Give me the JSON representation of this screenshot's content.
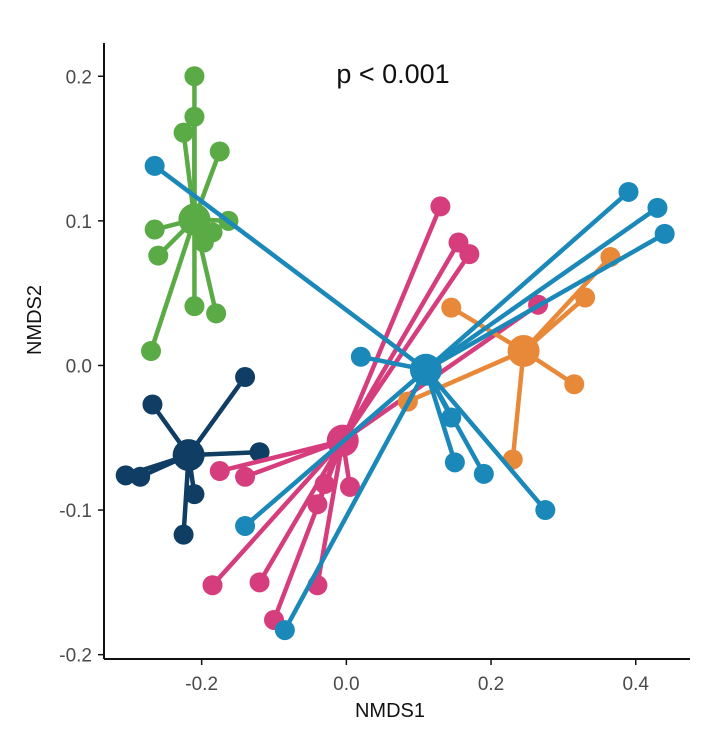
{
  "chart_data": {
    "type": "scatter",
    "xlabel": "NMDS1",
    "ylabel": "NMDS2",
    "annotation": "p < 0.001",
    "xlim": [
      -0.335,
      0.475
    ],
    "ylim": [
      -0.203,
      0.223
    ],
    "xticks": [
      -0.2,
      0.0,
      0.2,
      0.4
    ],
    "xtick_labels": [
      "-0.2",
      "0.0",
      "0.2",
      "0.4"
    ],
    "yticks": [
      -0.2,
      -0.1,
      0.0,
      0.1,
      0.2
    ],
    "ytick_labels": [
      "-0.2",
      "-0.1",
      "0.0",
      "0.1",
      "0.2"
    ],
    "grid": false,
    "legend": "none",
    "series": [
      {
        "color": "#5aaa46",
        "centroid": [
          -0.21,
          0.101
        ],
        "points": [
          [
            -0.21,
            0.2
          ],
          [
            -0.21,
            0.172
          ],
          [
            -0.225,
            0.161
          ],
          [
            -0.175,
            0.148
          ],
          [
            -0.265,
            0.094
          ],
          [
            -0.26,
            0.076
          ],
          [
            -0.185,
            0.092
          ],
          [
            -0.197,
            0.085
          ],
          [
            -0.163,
            0.1
          ],
          [
            -0.21,
            0.041
          ],
          [
            -0.18,
            0.036
          ],
          [
            -0.27,
            0.01
          ]
        ]
      },
      {
        "color": "#0f3d64",
        "centroid": [
          -0.218,
          -0.062
        ],
        "points": [
          [
            -0.14,
            -0.008
          ],
          [
            -0.268,
            -0.027
          ],
          [
            -0.285,
            -0.077
          ],
          [
            -0.305,
            -0.076
          ],
          [
            -0.21,
            -0.089
          ],
          [
            -0.225,
            -0.117
          ],
          [
            -0.12,
            -0.06
          ]
        ]
      },
      {
        "color": "#d63d7c",
        "centroid": [
          -0.005,
          -0.052
        ],
        "points": [
          [
            0.13,
            0.11
          ],
          [
            0.155,
            0.085
          ],
          [
            0.17,
            0.077
          ],
          [
            0.265,
            0.042
          ],
          [
            -0.175,
            -0.073
          ],
          [
            -0.14,
            -0.077
          ],
          [
            -0.03,
            -0.082
          ],
          [
            0.005,
            -0.084
          ],
          [
            -0.04,
            -0.096
          ],
          [
            -0.185,
            -0.152
          ],
          [
            -0.12,
            -0.15
          ],
          [
            -0.04,
            -0.152
          ],
          [
            -0.1,
            -0.176
          ]
        ]
      },
      {
        "color": "#e8893a",
        "centroid": [
          0.245,
          0.01
        ],
        "points": [
          [
            0.365,
            0.075
          ],
          [
            0.33,
            0.047
          ],
          [
            0.145,
            0.04
          ],
          [
            0.315,
            -0.013
          ],
          [
            0.085,
            -0.025
          ],
          [
            0.23,
            -0.065
          ]
        ]
      },
      {
        "color": "#1b88ba",
        "centroid": [
          0.11,
          -0.003
        ],
        "points": [
          [
            -0.265,
            0.138
          ],
          [
            0.39,
            0.12
          ],
          [
            0.43,
            0.109
          ],
          [
            0.44,
            0.091
          ],
          [
            0.02,
            0.006
          ],
          [
            0.145,
            -0.036
          ],
          [
            0.15,
            -0.067
          ],
          [
            0.19,
            -0.075
          ],
          [
            0.275,
            -0.1
          ],
          [
            -0.14,
            -0.111
          ],
          [
            -0.085,
            -0.183
          ]
        ]
      }
    ]
  }
}
